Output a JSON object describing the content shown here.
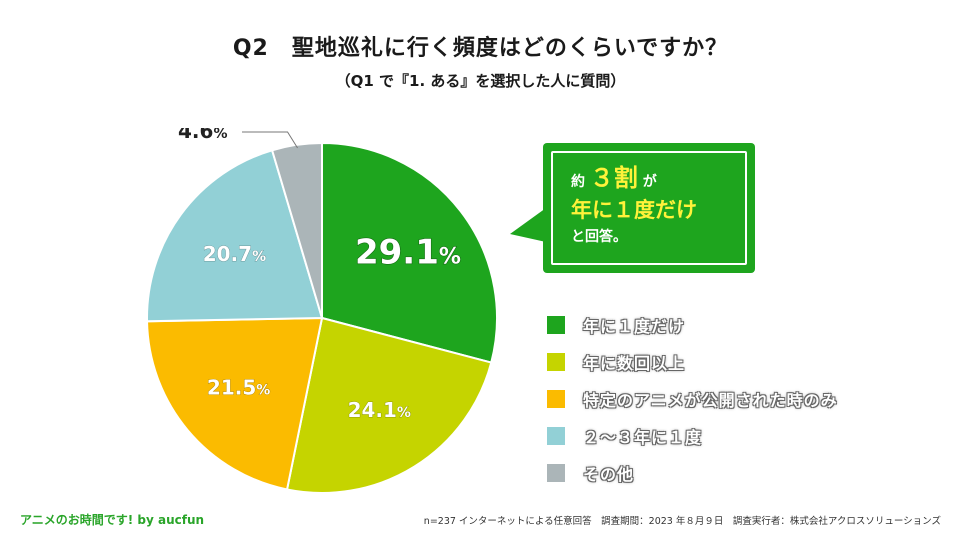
{
  "title": "Q2　聖地巡礼に行く頻度はどのくらいですか？",
  "subtitle": "（Q1 で『1. ある』を選択した人に質問）",
  "chart_data": {
    "type": "pie",
    "categories": [
      "年に１度だけ",
      "年に数回以上",
      "特定のアニメが公開された時のみ",
      "２〜３年に１度",
      "その他"
    ],
    "values": [
      29.1,
      24.1,
      21.5,
      20.7,
      4.6
    ],
    "labels": [
      "29.1",
      "24.1",
      "21.5",
      "20.7",
      "4.6"
    ],
    "unit": "%",
    "colors": [
      "#1ea51e",
      "#c5d400",
      "#fbbb00",
      "#92d0d6",
      "#abb5b8"
    ],
    "start_angle_deg": 0,
    "direction": "clockwise",
    "legend_position": "right"
  },
  "callout": {
    "line1_prefix": "約",
    "line1_big": "３割",
    "line1_suffix": "が",
    "line2": "年に１度だけ",
    "line3": "と回答。"
  },
  "footer": {
    "left": "アニメのお時間です! by aucfun",
    "right": "n=237 インターネットによる任意回答　調査期間：2023 年８月９日　調査実行者：株式会社アクロスソリューションズ"
  }
}
